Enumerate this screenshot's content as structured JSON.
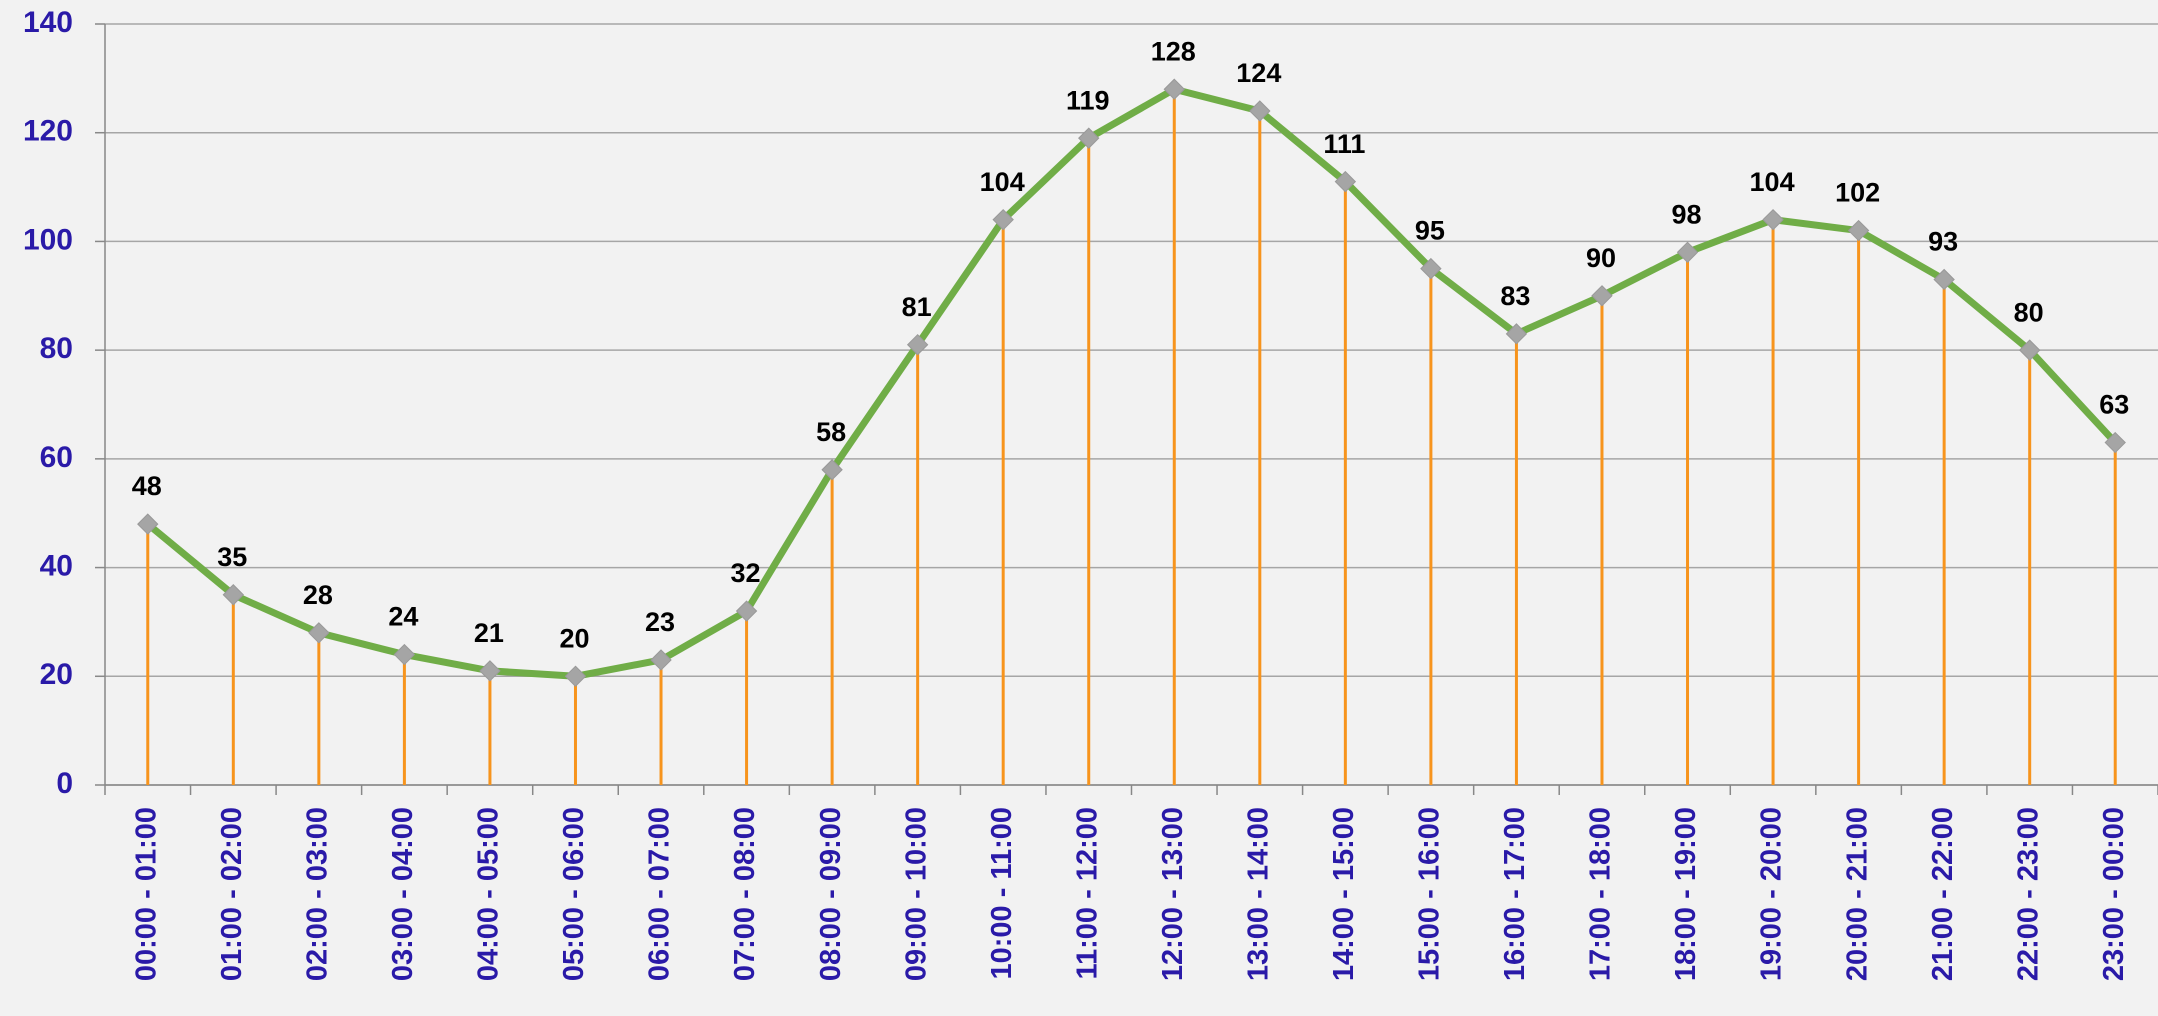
{
  "chart_data": {
    "type": "line",
    "categories": [
      "00:00 - 01:00",
      "01:00 - 02:00",
      "02:00 - 03:00",
      "03:00 - 04:00",
      "04:00 - 05:00",
      "05:00 - 06:00",
      "06:00 - 07:00",
      "07:00 - 08:00",
      "08:00 - 09:00",
      "09:00 - 10:00",
      "10:00 - 11:00",
      "11:00 - 12:00",
      "12:00 - 13:00",
      "13:00 - 14:00",
      "14:00 - 15:00",
      "15:00 - 16:00",
      "16:00 - 17:00",
      "17:00 - 18:00",
      "18:00 - 19:00",
      "19:00 - 20:00",
      "20:00 - 21:00",
      "21:00 - 22:00",
      "22:00 - 23:00",
      "23:00 - 00:00"
    ],
    "values": [
      48,
      35,
      28,
      24,
      21,
      20,
      23,
      32,
      58,
      81,
      104,
      119,
      128,
      124,
      111,
      95,
      83,
      90,
      98,
      104,
      102,
      93,
      80,
      63
    ],
    "color": "#70ad47",
    "marker_color": "#a5a5a5",
    "drop_line_color": "#f7941d",
    "ylim": [
      0,
      140
    ],
    "yticks": [
      0,
      20,
      40,
      60,
      80,
      100,
      120,
      140
    ],
    "grid": true
  }
}
